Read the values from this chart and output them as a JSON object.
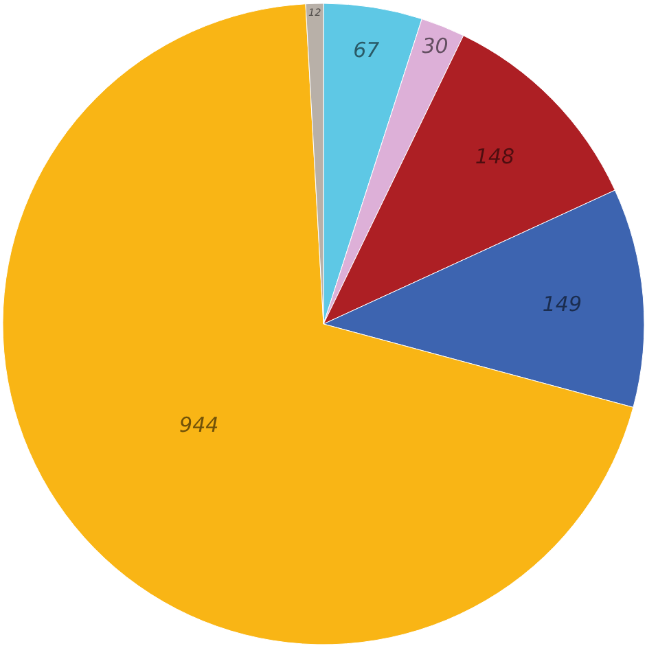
{
  "chart_data": {
    "type": "pie",
    "categories": [
      null,
      null,
      null,
      null,
      null,
      null
    ],
    "values": [
      67,
      30,
      148,
      149,
      944,
      12
    ],
    "colors": [
      "#5ec8e5",
      "#ddb0d8",
      "#ad1f24",
      "#3d64b0",
      "#f9b515",
      "#b8b0a8"
    ],
    "data_labels": true
  }
}
